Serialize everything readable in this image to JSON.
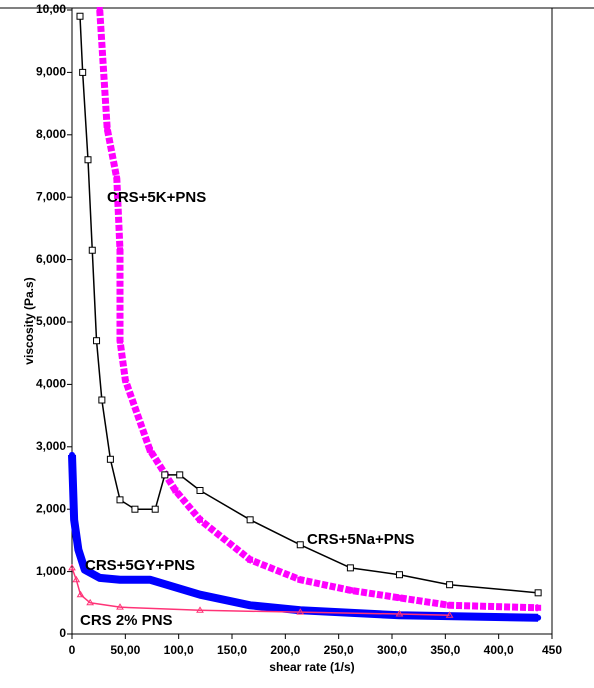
{
  "chart_data": {
    "type": "scatter",
    "xlabel": "shear rate (1/s)",
    "ylabel": "viscosity (Pa.s)",
    "xlim": [
      0,
      450
    ],
    "ylim": [
      0,
      10
    ],
    "xticks": [
      0,
      {
        "value": 50,
        "label": "50,00"
      },
      {
        "value": 100,
        "label": "100,0"
      },
      {
        "value": 150,
        "label": "150,0"
      },
      {
        "value": 200,
        "label": "200,0"
      },
      {
        "value": 250,
        "label": "250,0"
      },
      {
        "value": 300,
        "label": "300,0"
      },
      {
        "value": 350,
        "label": "350,0"
      },
      {
        "value": 400,
        "label": "400,0"
      },
      450
    ],
    "yticks": [
      0,
      {
        "value": 1,
        "label": "1,000"
      },
      {
        "value": 2,
        "label": "2,000"
      },
      {
        "value": 3,
        "label": "3,000"
      },
      {
        "value": 4,
        "label": "4,000"
      },
      {
        "value": 5,
        "label": "5,000"
      },
      {
        "value": 6,
        "label": "6,000"
      },
      {
        "value": 7,
        "label": "7,000"
      },
      {
        "value": 8,
        "label": "8,000"
      },
      {
        "value": 9,
        "label": "9,000"
      },
      {
        "value": 10,
        "label": "10,00"
      }
    ],
    "series": [
      {
        "name": "CRS+5K+PNS",
        "color": "#ff00ff",
        "marker": "square",
        "x": [
          26,
          33,
          42,
          45,
          45,
          50,
          73,
          97,
          120,
          167,
          214,
          261,
          307,
          354,
          437
        ],
        "values": [
          10,
          8.1,
          7.3,
          6.15,
          4.7,
          4.07,
          2.95,
          2.3,
          1.83,
          1.19,
          0.87,
          0.7,
          0.58,
          0.46,
          0.42
        ]
      },
      {
        "name": "CRS+5Na+PNS",
        "color": "#000000",
        "marker": "open-square",
        "x": [
          7.5,
          10,
          15,
          19,
          23,
          28,
          36,
          45,
          59,
          78,
          87,
          101,
          120,
          167,
          214,
          261,
          307,
          354,
          437
        ],
        "values": [
          9.9,
          9.0,
          7.6,
          6.15,
          4.7,
          3.75,
          2.8,
          2.15,
          2.0,
          2.0,
          2.55,
          2.55,
          2.3,
          1.83,
          1.43,
          1.06,
          0.95,
          0.79,
          0.66
        ]
      },
      {
        "name": "CRS+5GY+PNS",
        "color": "#0000ff",
        "marker": "circle",
        "x": [
          0,
          2,
          6,
          12,
          26,
          45,
          73,
          120,
          167,
          214,
          307,
          437
        ],
        "values": [
          2.87,
          1.83,
          1.35,
          1.03,
          0.9,
          0.87,
          0.87,
          0.63,
          0.46,
          0.38,
          0.3,
          0.26
        ]
      },
      {
        "name": "CRS 2% PNS",
        "color": "#ff3377",
        "marker": "triangle",
        "x": [
          0,
          4,
          8,
          17,
          45,
          120,
          214,
          307,
          354
        ],
        "values": [
          1.06,
          0.87,
          0.63,
          0.5,
          0.43,
          0.38,
          0.35,
          0.32,
          0.3
        ]
      }
    ]
  }
}
